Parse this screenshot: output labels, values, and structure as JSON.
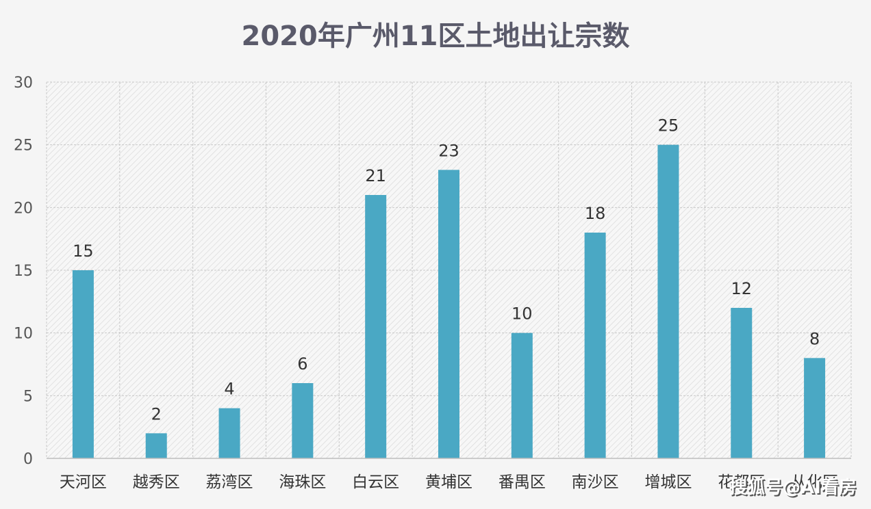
{
  "chart_data": {
    "type": "bar",
    "title": "2020年广州11区土地出让宗数",
    "categories": [
      "天河区",
      "越秀区",
      "荔湾区",
      "海珠区",
      "白云区",
      "黄埔区",
      "番禺区",
      "南沙区",
      "增城区",
      "花都区",
      "从化区"
    ],
    "values": [
      15,
      2,
      4,
      6,
      21,
      23,
      10,
      18,
      25,
      12,
      8
    ],
    "ylim": [
      0,
      30
    ],
    "yticks": [
      0,
      5,
      10,
      15,
      20,
      25,
      30
    ],
    "grid": true,
    "bar_color": "#4aa8c4",
    "xlabel": "",
    "ylabel": ""
  },
  "watermark": "搜狐号@AI看房"
}
